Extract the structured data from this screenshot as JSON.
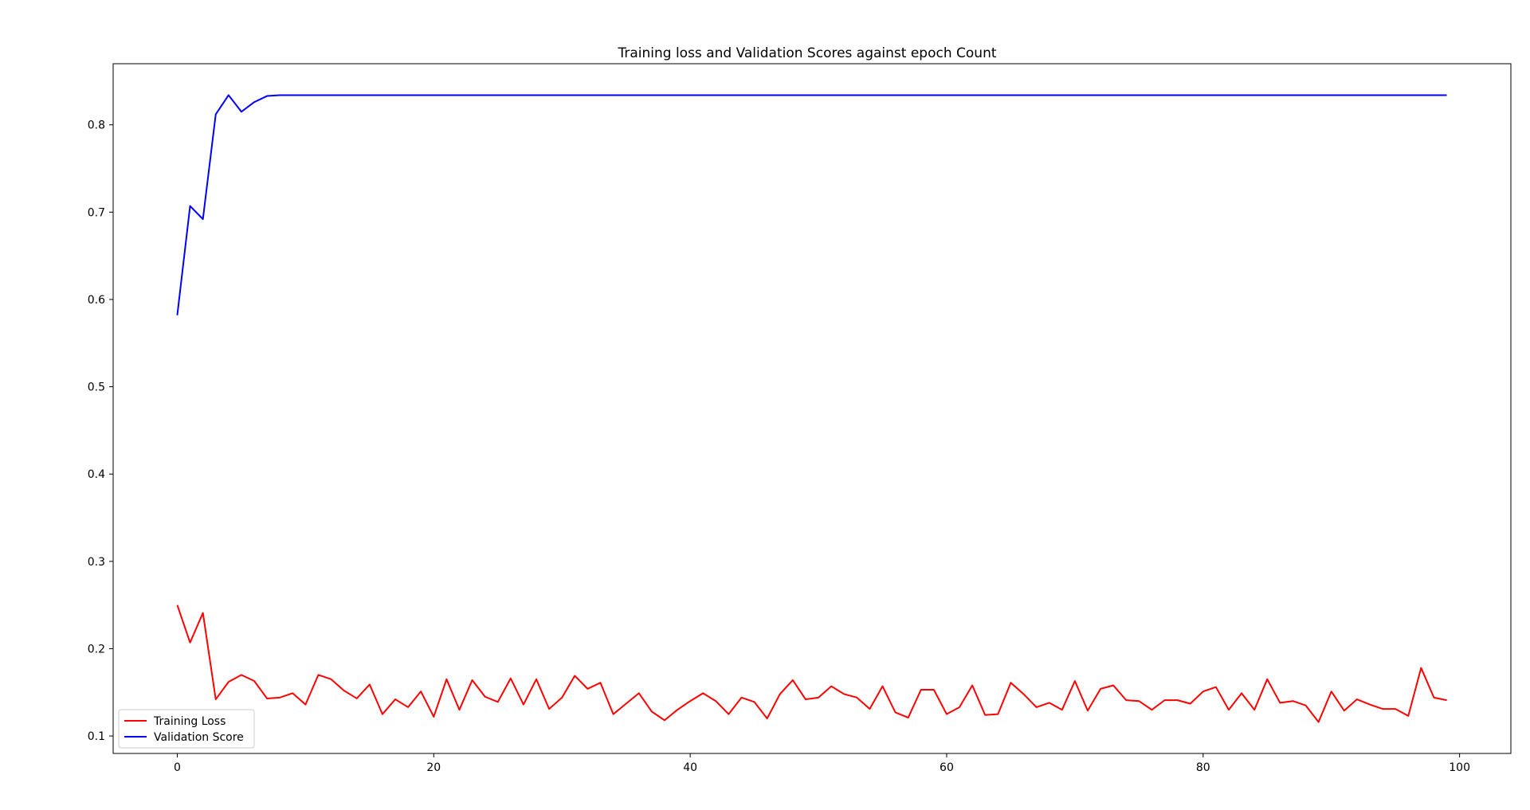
{
  "chart_data": {
    "type": "line",
    "title": "Training loss and Validation Scores against epoch Count",
    "xlabel": "",
    "ylabel": "",
    "xlim": [
      -5,
      104
    ],
    "ylim": [
      0.08,
      0.87
    ],
    "x_ticks": [
      0,
      20,
      40,
      60,
      80,
      100
    ],
    "y_ticks": [
      0.1,
      0.2,
      0.3,
      0.4,
      0.5,
      0.6,
      0.7,
      0.8
    ],
    "grid": false,
    "legend": {
      "placement": "lower-left",
      "entries": [
        "Training Loss",
        "Validation Score"
      ]
    },
    "x": [
      0,
      1,
      2,
      3,
      4,
      5,
      6,
      7,
      8,
      9,
      10,
      11,
      12,
      13,
      14,
      15,
      16,
      17,
      18,
      19,
      20,
      21,
      22,
      23,
      24,
      25,
      26,
      27,
      28,
      29,
      30,
      31,
      32,
      33,
      34,
      35,
      36,
      37,
      38,
      39,
      40,
      41,
      42,
      43,
      44,
      45,
      46,
      47,
      48,
      49,
      50,
      51,
      52,
      53,
      54,
      55,
      56,
      57,
      58,
      59,
      60,
      61,
      62,
      63,
      64,
      65,
      66,
      67,
      68,
      69,
      70,
      71,
      72,
      73,
      74,
      75,
      76,
      77,
      78,
      79,
      80,
      81,
      82,
      83,
      84,
      85,
      86,
      87,
      88,
      89,
      90,
      91,
      92,
      93,
      94,
      95,
      96,
      97,
      98,
      99
    ],
    "series": [
      {
        "name": "Training Loss",
        "color": "#ff0000",
        "values": [
          0.25,
          0.207,
          0.241,
          0.142,
          0.162,
          0.17,
          0.163,
          0.143,
          0.144,
          0.149,
          0.136,
          0.17,
          0.165,
          0.152,
          0.143,
          0.159,
          0.125,
          0.142,
          0.133,
          0.151,
          0.122,
          0.165,
          0.13,
          0.164,
          0.145,
          0.139,
          0.166,
          0.136,
          0.165,
          0.131,
          0.144,
          0.169,
          0.154,
          0.161,
          0.125,
          0.137,
          0.149,
          0.128,
          0.118,
          0.13,
          0.14,
          0.149,
          0.14,
          0.125,
          0.144,
          0.139,
          0.12,
          0.148,
          0.164,
          0.142,
          0.144,
          0.157,
          0.148,
          0.144,
          0.131,
          0.157,
          0.127,
          0.121,
          0.153,
          0.153,
          0.125,
          0.133,
          0.158,
          0.124,
          0.125,
          0.161,
          0.148,
          0.133,
          0.138,
          0.13,
          0.163,
          0.129,
          0.154,
          0.158,
          0.141,
          0.14,
          0.13,
          0.141,
          0.141,
          0.137,
          0.151,
          0.156,
          0.13,
          0.149,
          0.13,
          0.165,
          0.138,
          0.14,
          0.135,
          0.116,
          0.151,
          0.129,
          0.142,
          0.136,
          0.131,
          0.131,
          0.123,
          0.178,
          0.144,
          0.141
        ]
      },
      {
        "name": "Validation Score",
        "color": "#0000ff",
        "values": [
          0.582,
          0.707,
          0.692,
          0.812,
          0.834,
          0.815,
          0.826,
          0.833,
          0.834,
          0.834,
          0.834,
          0.834,
          0.834,
          0.834,
          0.834,
          0.834,
          0.834,
          0.834,
          0.834,
          0.834,
          0.834,
          0.834,
          0.834,
          0.834,
          0.834,
          0.834,
          0.834,
          0.834,
          0.834,
          0.834,
          0.834,
          0.834,
          0.834,
          0.834,
          0.834,
          0.834,
          0.834,
          0.834,
          0.834,
          0.834,
          0.834,
          0.834,
          0.834,
          0.834,
          0.834,
          0.834,
          0.834,
          0.834,
          0.834,
          0.834,
          0.834,
          0.834,
          0.834,
          0.834,
          0.834,
          0.834,
          0.834,
          0.834,
          0.834,
          0.834,
          0.834,
          0.834,
          0.834,
          0.834,
          0.834,
          0.834,
          0.834,
          0.834,
          0.834,
          0.834,
          0.834,
          0.834,
          0.834,
          0.834,
          0.834,
          0.834,
          0.834,
          0.834,
          0.834,
          0.834,
          0.834,
          0.834,
          0.834,
          0.834,
          0.834,
          0.834,
          0.834,
          0.834,
          0.834,
          0.834,
          0.834,
          0.834,
          0.834,
          0.834,
          0.834,
          0.834,
          0.834,
          0.834,
          0.834,
          0.834
        ]
      }
    ]
  }
}
